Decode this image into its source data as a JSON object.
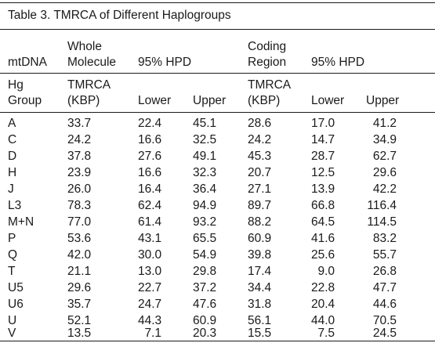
{
  "caption": "Table 3.  TMRCA of Different Haplogroups",
  "header": {
    "row1": {
      "whole": "Whole",
      "coding": "Coding"
    },
    "row2": {
      "mtdna": "mtDNA",
      "molecule": "Molecule",
      "hpd1": "95% HPD",
      "region": "Region",
      "hpd2": "95% HPD"
    },
    "row3": {
      "hg": "Hg",
      "tmrca1": "TMRCA",
      "tmrca2": "TMRCA"
    },
    "row4": {
      "group": "Group",
      "kbp1": "(KBP)",
      "lower1": "Lower",
      "upper1": "Upper",
      "kbp2": "(KBP)",
      "lower2": "Lower",
      "upper2": "Upper"
    }
  },
  "rows": [
    [
      "A",
      "33.7",
      "22.4",
      "45.1",
      "28.6",
      "17.0",
      "41.2"
    ],
    [
      "C",
      "24.2",
      "16.6",
      "32.5",
      "24.2",
      "14.7",
      "34.9"
    ],
    [
      "D",
      "37.8",
      "27.6",
      "49.1",
      "45.3",
      "28.7",
      "62.7"
    ],
    [
      "H",
      "23.9",
      "16.6",
      "32.3",
      "20.7",
      "12.5",
      "29.6"
    ],
    [
      "J",
      "26.0",
      "16.4",
      "36.4",
      "27.1",
      "13.9",
      "42.2"
    ],
    [
      "L3",
      "78.3",
      "62.4",
      "94.9",
      "89.7",
      "66.8",
      "116.4"
    ],
    [
      "M+N",
      "77.0",
      "61.4",
      "93.2",
      "88.2",
      "64.5",
      "114.5"
    ],
    [
      "P",
      "53.6",
      "43.1",
      "65.5",
      "60.9",
      "41.6",
      "83.2"
    ],
    [
      "Q",
      "42.0",
      "30.0",
      "54.9",
      "39.8",
      "25.6",
      "55.7"
    ],
    [
      "T",
      "21.1",
      "13.0",
      "29.8",
      "17.4",
      "9.0",
      "26.8"
    ],
    [
      "U5",
      "29.6",
      "22.7",
      "37.2",
      "34.4",
      "22.8",
      "47.7"
    ],
    [
      "U6",
      "35.7",
      "24.7",
      "47.6",
      "31.8",
      "20.4",
      "44.6"
    ],
    [
      "U",
      "52.1",
      "44.3",
      "60.9",
      "56.1",
      "44.0",
      "70.5"
    ],
    [
      "V",
      "13.5",
      "7.1",
      "20.3",
      "15.5",
      "7.5",
      "24.5"
    ]
  ]
}
